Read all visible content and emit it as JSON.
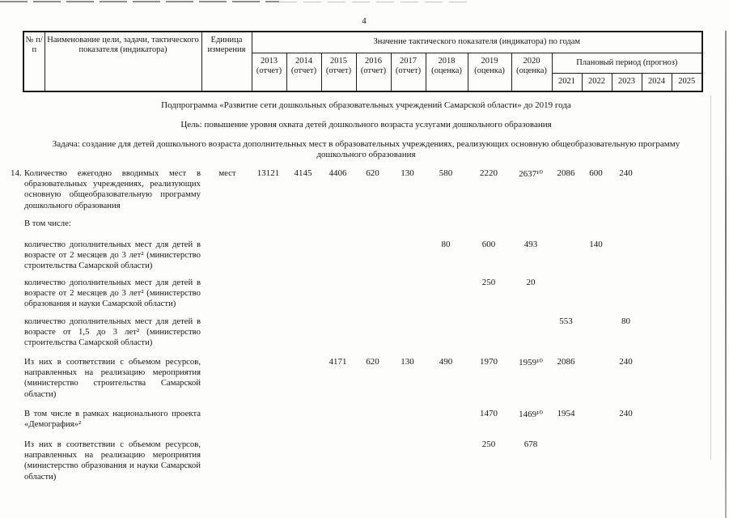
{
  "page": {
    "number": "4"
  },
  "table_header": {
    "col_num": "№ п/п",
    "col_name": "Наименование цели, задачи, тактического показателя (индикатора)",
    "col_unit": "Единица измерения",
    "col_values_group": "Значение тактического показателя (индикатора) по годам",
    "col_plan_group": "Плановый период (прогноз)",
    "years": [
      {
        "year": "2013",
        "note": "(отчет)"
      },
      {
        "year": "2014",
        "note": "(отчет)"
      },
      {
        "year": "2015",
        "note": "(отчет)"
      },
      {
        "year": "2016",
        "note": "(отчет)"
      },
      {
        "year": "2017",
        "note": "(отчет)"
      },
      {
        "year": "2018",
        "note": "(оценка)"
      },
      {
        "year": "2019",
        "note": "(оценка)"
      },
      {
        "year": "2020",
        "note": "(оценка)"
      }
    ],
    "plan_years": [
      "2021",
      "2022",
      "2023",
      "2024",
      "2025"
    ]
  },
  "sections": {
    "subprogram": "Подпрограмма «Развитие сети дошкольных образовательных учреждений Самарской области» до 2019 года",
    "goal": "Цель: повышение уровня охвата детей дошкольного возраста услугами дошкольного образования",
    "task": "Задача: создание для детей дошкольного возраста дополнительных мест в образовательных учреждениях, реализующих основную общеобразовательную программу дошкольного образования"
  },
  "rows": [
    {
      "num": "14.",
      "name": "Количество ежегодно вводимых мест в образовательных учреждениях, реализующих основную общеобразовательную программу дошкольного образования",
      "unit": "мест",
      "values": [
        "13121",
        "4145",
        "4406",
        "620",
        "130",
        "580",
        "2220",
        "2637¹⁰",
        "2086",
        "600",
        "240",
        "",
        ""
      ]
    },
    {
      "num": "",
      "name": "В том числе:",
      "unit": "",
      "values": [
        "",
        "",
        "",
        "",
        "",
        "",
        "",
        "",
        "",
        "",
        "",
        "",
        ""
      ]
    },
    {
      "num": "",
      "name": "количество дополнительных мест для детей в возрасте от 2 месяцев до 3 лет² (министерство строительства Самарской области)",
      "unit": "",
      "values": [
        "",
        "",
        "",
        "",
        "",
        "80",
        "600",
        "493",
        "",
        "140",
        "",
        "",
        ""
      ]
    },
    {
      "num": "",
      "name": "количество дополнительных мест для детей в возрасте от 2 месяцев до 3 лет² (министерство образования и науки Самарской области)",
      "unit": "",
      "values": [
        "",
        "",
        "",
        "",
        "",
        "",
        "250",
        "20",
        "",
        "",
        "",
        "",
        ""
      ]
    },
    {
      "num": "",
      "name": "количество дополнительных мест для детей в возрасте от 1,5 до 3 лет² (министерство строительства Самарской области)",
      "unit": "",
      "values": [
        "",
        "",
        "",
        "",
        "",
        "",
        "",
        "",
        "553",
        "",
        "80",
        "",
        ""
      ]
    },
    {
      "num": "",
      "name": "Из них в соответствии с объемом ресурсов, направленных на реализацию мероприятия (министерство строительства Самарской области)",
      "unit": "",
      "values": [
        "",
        "",
        "4171",
        "620",
        "130",
        "490",
        "1970",
        "1959¹⁰",
        "2086",
        "",
        "240",
        "",
        ""
      ]
    },
    {
      "num": "",
      "name": "В том числе в рамках национального проекта «Демография»²",
      "unit": "",
      "values": [
        "",
        "",
        "",
        "",
        "",
        "",
        "1470",
        "1469¹⁰",
        "1954",
        "",
        "240",
        "",
        ""
      ]
    },
    {
      "num": "",
      "name": "Из них в соответствии с объемом ресурсов, направленных на реализацию мероприятия (министерство образования и науки Самарской области)",
      "unit": "",
      "values": [
        "",
        "",
        "",
        "",
        "",
        "",
        "250",
        "678",
        "",
        "",
        "",
        "",
        ""
      ]
    }
  ]
}
